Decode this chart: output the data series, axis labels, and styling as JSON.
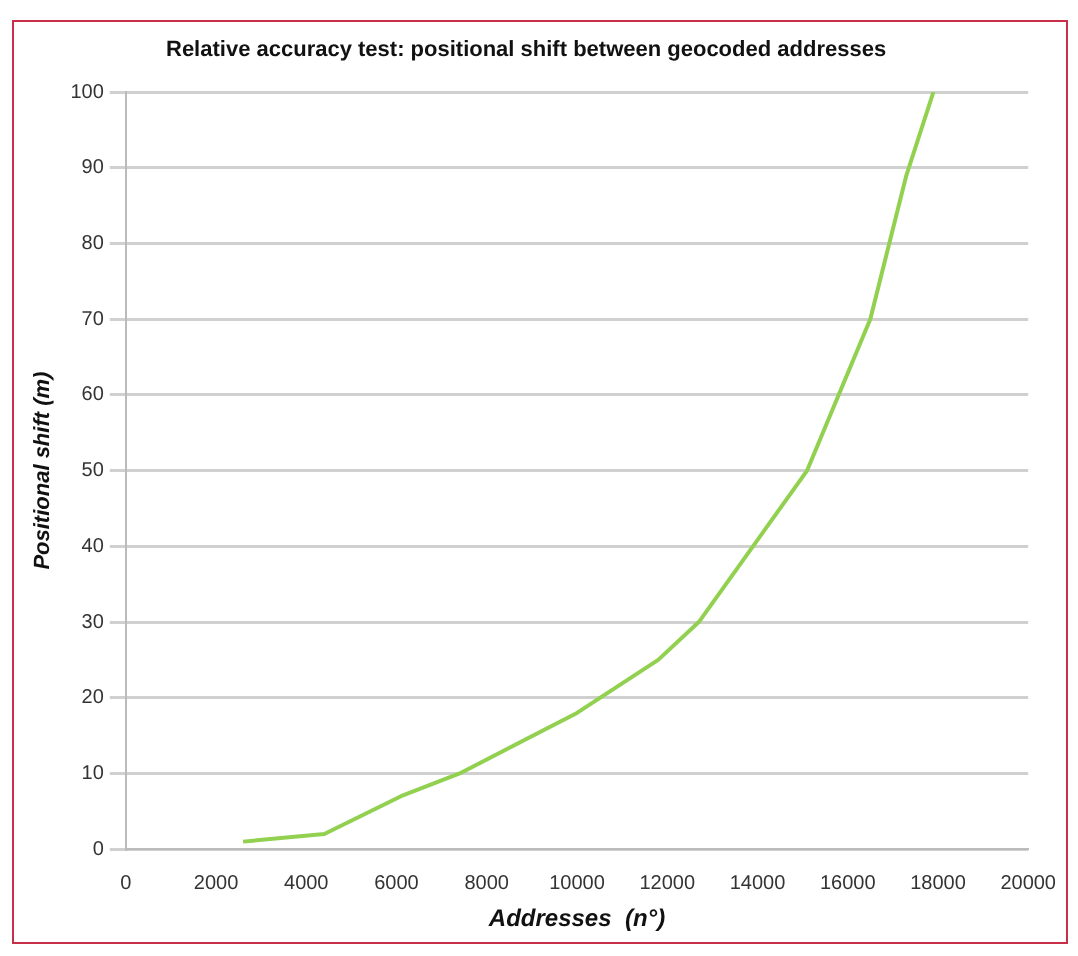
{
  "chart_data": {
    "type": "line",
    "title": "Relative accuracy test: positional shift between geocoded addresses",
    "xlabel": "Addresses  (n°)",
    "ylabel": "Positional shift (m)",
    "x": [
      2600,
      4400,
      6100,
      7400,
      10000,
      11800,
      12700,
      13900,
      15100,
      16500,
      17300,
      17900
    ],
    "series": [
      {
        "color": "#92d050",
        "values": [
          1,
          2,
          7,
          10,
          18,
          25,
          30,
          40,
          50,
          70,
          89,
          100
        ]
      }
    ],
    "xlim": [
      0,
      20000
    ],
    "xticks": [
      0,
      2000,
      4000,
      6000,
      8000,
      10000,
      12000,
      14000,
      16000,
      18000,
      20000
    ],
    "ylim": [
      0,
      100
    ],
    "yticks": [
      0,
      10,
      20,
      30,
      40,
      50,
      60,
      70,
      80,
      90,
      100
    ],
    "grid": "y",
    "legend": false,
    "marker": "none",
    "line_style": "solid"
  }
}
